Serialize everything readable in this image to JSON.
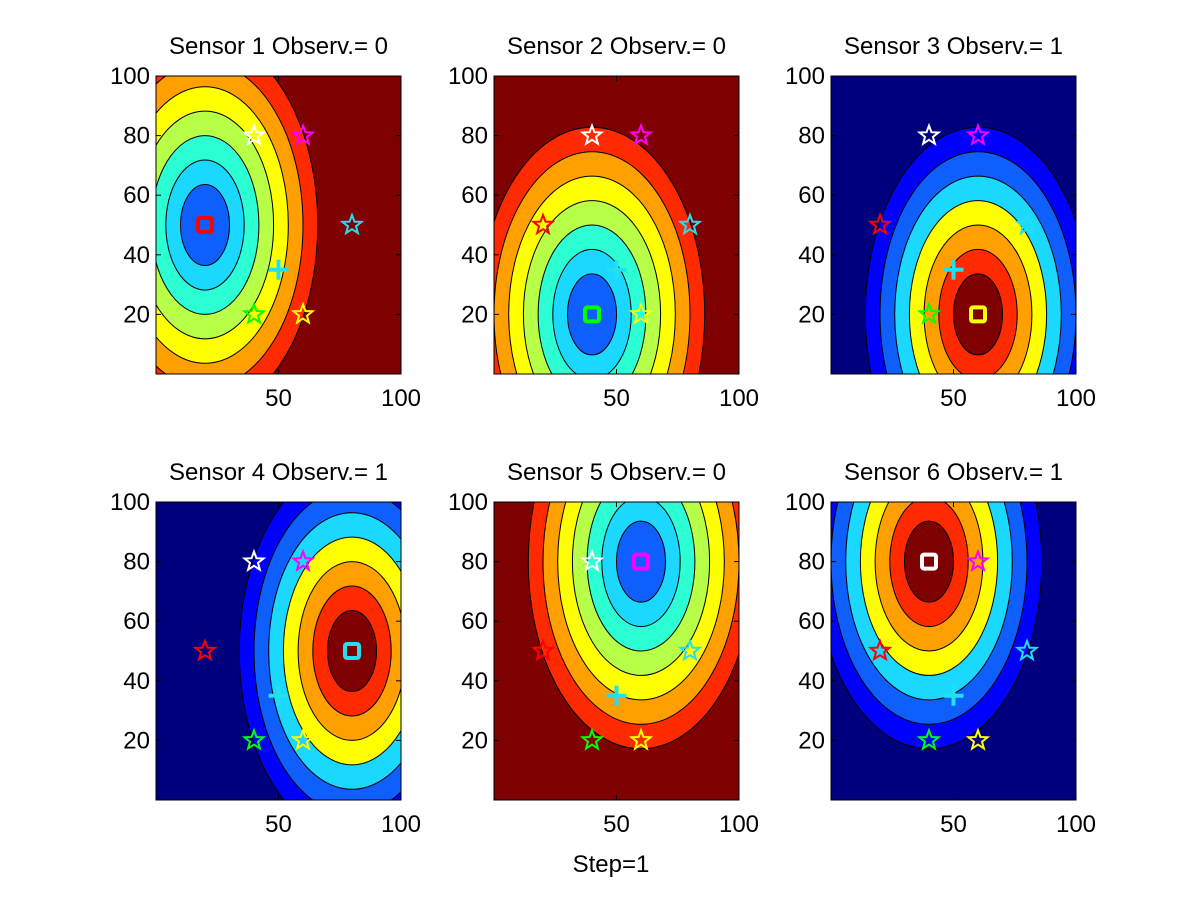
{
  "figure": {
    "xlabel": "Step=1"
  },
  "chart_data": {
    "type": "heatmap",
    "xlim": [
      0,
      100
    ],
    "ylim": [
      0,
      100
    ],
    "x_ticks": [
      50,
      100
    ],
    "y_ticks": [
      20,
      40,
      60,
      80,
      100
    ],
    "levels": [
      0.08,
      0.16,
      0.25,
      0.33,
      0.41,
      0.5,
      0.58
    ],
    "colormap": [
      "#00007f",
      "#0000ff",
      "#0f5fff",
      "#1ad8ff",
      "#2bffd3",
      "#b8ff48",
      "#ffff00",
      "#ff9f00",
      "#ff2a00",
      "#7f0000"
    ],
    "target": {
      "x": 50,
      "y": 35,
      "color": "#21e0f0",
      "marker": "plus"
    },
    "sensors": [
      {
        "id": 1,
        "x": 20,
        "y": 50,
        "color": "#ff0000"
      },
      {
        "id": 2,
        "x": 40,
        "y": 20,
        "color": "#00ff00"
      },
      {
        "id": 3,
        "x": 60,
        "y": 20,
        "color": "#ffff00"
      },
      {
        "id": 4,
        "x": 80,
        "y": 50,
        "color": "#21e0f0"
      },
      {
        "id": 5,
        "x": 60,
        "y": 80,
        "color": "#ff00ff"
      },
      {
        "id": 6,
        "x": 40,
        "y": 80,
        "color": "#ffffff"
      }
    ],
    "panels": [
      {
        "title": "Sensor 1 Observ.= 0",
        "sensor": 1,
        "observation": 0
      },
      {
        "title": "Sensor 2 Observ.= 0",
        "sensor": 2,
        "observation": 0
      },
      {
        "title": "Sensor 3 Observ.= 1",
        "sensor": 3,
        "observation": 1
      },
      {
        "title": "Sensor 4 Observ.= 1",
        "sensor": 4,
        "observation": 1
      },
      {
        "title": "Sensor 5 Observ.= 0",
        "sensor": 5,
        "observation": 0
      },
      {
        "title": "Sensor 6 Observ.= 1",
        "sensor": 6,
        "observation": 1
      }
    ]
  }
}
